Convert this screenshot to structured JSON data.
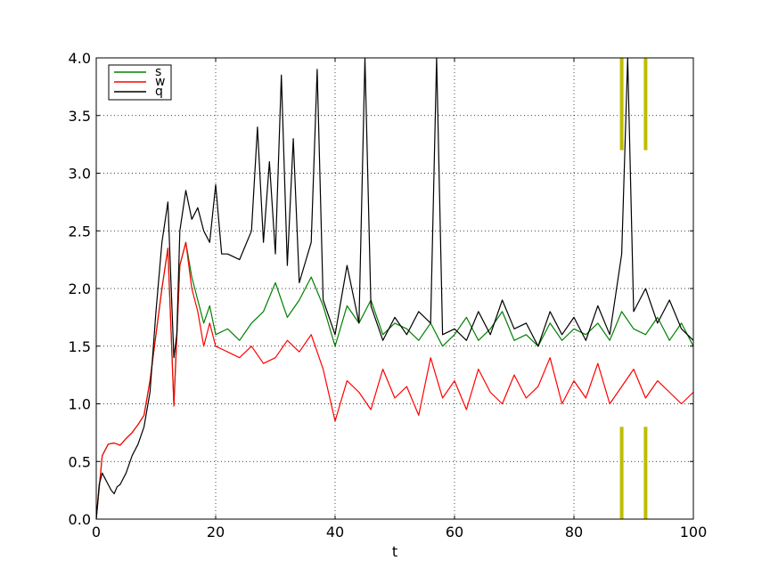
{
  "chart_data": {
    "type": "line",
    "title": "",
    "xlabel": "t",
    "ylabel": "",
    "xlim": [
      0,
      100
    ],
    "ylim": [
      0,
      4.0
    ],
    "grid": true,
    "legend_placement": "top-left",
    "x_ticks": [
      "0",
      "20",
      "40",
      "60",
      "80",
      "100"
    ],
    "y_ticks": [
      "0.0",
      "0.5",
      "1.0",
      "1.5",
      "2.0",
      "2.5",
      "3.0",
      "3.5",
      "4.0"
    ],
    "x_tick_values": [
      0,
      20,
      40,
      60,
      80,
      100
    ],
    "y_tick_values": [
      0,
      0.5,
      1.0,
      1.5,
      2.0,
      2.5,
      3.0,
      3.5,
      4.0
    ],
    "series": [
      {
        "name": "s",
        "color": "#008000",
        "x": [
          0,
          1,
          2,
          3,
          4,
          5,
          6,
          7,
          8,
          9,
          10,
          11,
          12,
          13,
          14,
          15,
          16,
          17,
          18,
          19,
          20,
          22,
          24,
          26,
          28,
          30,
          32,
          34,
          36,
          38,
          40,
          42,
          44,
          46,
          48,
          50,
          52,
          54,
          56,
          58,
          60,
          62,
          64,
          66,
          68,
          70,
          72,
          74,
          76,
          78,
          80,
          82,
          84,
          86,
          88,
          90,
          92,
          94,
          96,
          98,
          100
        ],
        "y": [
          0.0,
          0.55,
          0.65,
          0.66,
          0.64,
          0.7,
          0.75,
          0.82,
          0.9,
          1.2,
          1.6,
          2.0,
          2.35,
          1.0,
          2.2,
          2.4,
          2.1,
          1.9,
          1.7,
          1.85,
          1.6,
          1.65,
          1.55,
          1.7,
          1.8,
          2.05,
          1.75,
          1.9,
          2.1,
          1.85,
          1.5,
          1.85,
          1.7,
          1.9,
          1.6,
          1.7,
          1.65,
          1.55,
          1.7,
          1.5,
          1.6,
          1.75,
          1.55,
          1.65,
          1.8,
          1.55,
          1.6,
          1.5,
          1.7,
          1.55,
          1.65,
          1.6,
          1.7,
          1.55,
          1.8,
          1.65,
          1.6,
          1.75,
          1.55,
          1.7,
          1.5
        ]
      },
      {
        "name": "w",
        "color": "#ff0000",
        "x": [
          0,
          1,
          2,
          3,
          4,
          5,
          6,
          7,
          8,
          9,
          10,
          11,
          12,
          13,
          14,
          15,
          16,
          17,
          18,
          19,
          20,
          22,
          24,
          26,
          28,
          30,
          32,
          34,
          36,
          38,
          40,
          42,
          44,
          46,
          48,
          50,
          52,
          54,
          56,
          58,
          60,
          62,
          64,
          66,
          68,
          70,
          72,
          74,
          76,
          78,
          80,
          82,
          84,
          86,
          88,
          90,
          92,
          94,
          96,
          98,
          100
        ],
        "y": [
          0.0,
          0.55,
          0.65,
          0.66,
          0.64,
          0.7,
          0.75,
          0.82,
          0.9,
          1.2,
          1.6,
          2.0,
          2.35,
          0.98,
          2.2,
          2.4,
          2.0,
          1.8,
          1.5,
          1.7,
          1.5,
          1.45,
          1.4,
          1.5,
          1.35,
          1.4,
          1.55,
          1.45,
          1.6,
          1.3,
          0.85,
          1.2,
          1.1,
          0.95,
          1.3,
          1.05,
          1.15,
          0.9,
          1.4,
          1.05,
          1.2,
          0.95,
          1.3,
          1.1,
          1.0,
          1.25,
          1.05,
          1.15,
          1.4,
          1.0,
          1.2,
          1.05,
          1.35,
          1.0,
          1.15,
          1.3,
          1.05,
          1.2,
          1.1,
          1.0,
          1.1
        ]
      },
      {
        "name": "q",
        "color": "#000000",
        "x": [
          0,
          0.5,
          1,
          1.5,
          2,
          2.5,
          3,
          3.5,
          4,
          5,
          6,
          7,
          8,
          9,
          10,
          11,
          12,
          13,
          13.5,
          14,
          15,
          16,
          17,
          18,
          19,
          20,
          21,
          22,
          24,
          26,
          27,
          28,
          29,
          30,
          31,
          32,
          33,
          34,
          36,
          37,
          38,
          40,
          42,
          44,
          45,
          46,
          48,
          50,
          52,
          54,
          56,
          57,
          58,
          60,
          62,
          64,
          66,
          68,
          70,
          72,
          74,
          76,
          78,
          80,
          82,
          84,
          86,
          88,
          89,
          90,
          92,
          94,
          96,
          98,
          100
        ],
        "y": [
          0.0,
          0.3,
          0.4,
          0.35,
          0.3,
          0.25,
          0.22,
          0.28,
          0.3,
          0.4,
          0.55,
          0.65,
          0.8,
          1.1,
          1.8,
          2.4,
          2.75,
          1.4,
          1.6,
          2.5,
          2.85,
          2.6,
          2.7,
          2.5,
          2.4,
          2.9,
          2.3,
          2.3,
          2.25,
          2.5,
          3.4,
          2.4,
          3.1,
          2.3,
          3.85,
          2.2,
          3.3,
          2.05,
          2.4,
          3.9,
          1.9,
          1.6,
          2.2,
          1.7,
          4.0,
          1.85,
          1.55,
          1.75,
          1.6,
          1.8,
          1.7,
          4.0,
          1.6,
          1.65,
          1.55,
          1.8,
          1.6,
          1.9,
          1.65,
          1.7,
          1.5,
          1.8,
          1.6,
          1.75,
          1.55,
          1.85,
          1.6,
          2.3,
          4.0,
          1.8,
          2.0,
          1.7,
          1.9,
          1.65,
          1.55
        ]
      }
    ],
    "markers": [
      {
        "color": "#bdbd00",
        "x": 88,
        "y_ranges": [
          [
            0,
            0.8
          ],
          [
            3.2,
            4.0
          ]
        ]
      },
      {
        "color": "#bdbd00",
        "x": 92,
        "y_ranges": [
          [
            0,
            0.8
          ],
          [
            3.2,
            4.0
          ]
        ]
      }
    ]
  }
}
